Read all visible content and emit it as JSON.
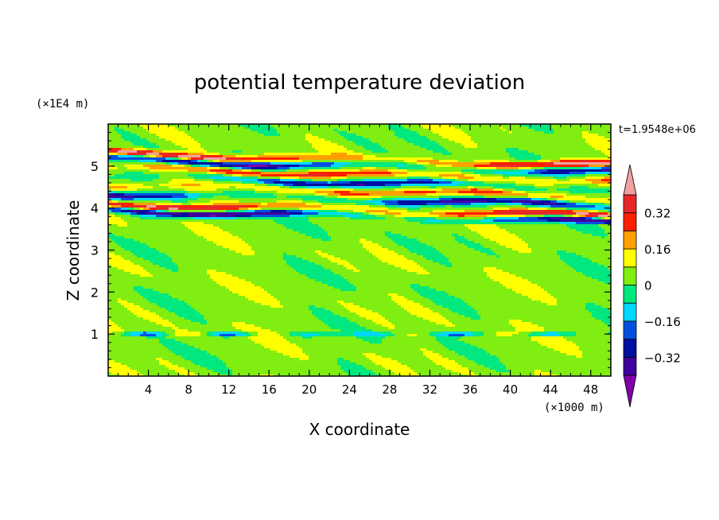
{
  "chart_data": {
    "type": "heatmap",
    "title": "potential temperature deviation",
    "xlabel": "X coordinate",
    "ylabel": "Z coordinate",
    "x_unit_label": "(×1000 m)",
    "y_unit_label": "(×1E4 m)",
    "time_label": "t=1.9548e+06",
    "xlim": [
      0,
      50
    ],
    "ylim": [
      0,
      6
    ],
    "x_ticks": [
      4,
      8,
      12,
      16,
      20,
      24,
      28,
      32,
      36,
      40,
      44,
      48
    ],
    "x_tick_labels": [
      "4",
      "8",
      "12",
      "16",
      "20",
      "24",
      "28",
      "32",
      "36",
      "40",
      "44",
      "48"
    ],
    "y_ticks": [
      1,
      2,
      3,
      4,
      5
    ],
    "y_tick_labels": [
      "1",
      "2",
      "3",
      "4",
      "5"
    ],
    "colorbar": {
      "levels": [
        -0.48,
        -0.4,
        -0.32,
        -0.24,
        -0.16,
        -0.08,
        0,
        0.08,
        0.16,
        0.24,
        0.32,
        0.4,
        0.48
      ],
      "colors": [
        "#7f00a8",
        "#3f009f",
        "#000f9f",
        "#0050e0",
        "#00d8ff",
        "#00e87f",
        "#80ee10",
        "#ffff00",
        "#ffa000",
        "#ff2000",
        "#e82828",
        "#f0a0a0"
      ],
      "tick_values": [
        0.32,
        0.16,
        0,
        -0.16,
        -0.32
      ],
      "tick_labels": [
        "0.32",
        "0.16",
        "0",
        "−0.16",
        "−0.32"
      ],
      "extend": "both"
    },
    "field": {
      "background_value": 0.04,
      "description_bands": [
        {
          "z_center": 5.15,
          "value": 0.44
        },
        {
          "z_center": 5.0,
          "value": -0.4
        },
        {
          "z_center": 4.8,
          "value": 0.3
        },
        {
          "z_center": 4.6,
          "value": -0.35
        },
        {
          "z_center": 4.4,
          "value": 0.25
        },
        {
          "z_center": 4.2,
          "value": -0.4
        },
        {
          "z_center": 3.95,
          "value": 0.42
        },
        {
          "z_center": 3.8,
          "value": -0.45
        },
        {
          "z_center": 1.0,
          "value": -0.3
        }
      ]
    }
  }
}
